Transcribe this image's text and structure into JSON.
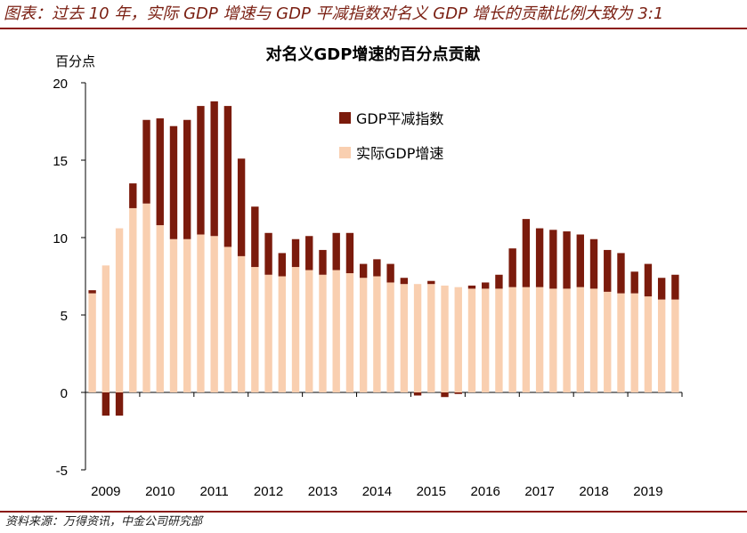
{
  "caption": "图表：过去 10 年，实际 GDP 增速与 GDP 平减指数对名义 GDP 增长的贡献比例大致为 3:1",
  "source": "资料来源：万得资讯，中金公司研究部",
  "colors": {
    "deflator": "#7b1b0c",
    "real": "#f9cfb0",
    "rule": "#8b1a10",
    "caption": "#7a1f12"
  },
  "chart_data": {
    "type": "bar",
    "stacked": true,
    "title": "对名义GDP增速的百分点贡献",
    "ylabel": "百分点",
    "xlabel": "",
    "ylim": [
      -5,
      20
    ],
    "yticks": [
      -5,
      0,
      5,
      10,
      15,
      20
    ],
    "xtick_labels": [
      "2009",
      "2010",
      "2011",
      "2012",
      "2013",
      "2014",
      "2015",
      "2016",
      "2017",
      "2018",
      "2019"
    ],
    "legend_position": "top-center",
    "categories": [
      "2009Q1",
      "2009Q2",
      "2009Q3",
      "2009Q4",
      "2010Q1",
      "2010Q2",
      "2010Q3",
      "2010Q4",
      "2011Q1",
      "2011Q2",
      "2011Q3",
      "2011Q4",
      "2012Q1",
      "2012Q2",
      "2012Q3",
      "2012Q4",
      "2013Q1",
      "2013Q2",
      "2013Q3",
      "2013Q4",
      "2014Q1",
      "2014Q2",
      "2014Q3",
      "2014Q4",
      "2015Q1",
      "2015Q2",
      "2015Q3",
      "2015Q4",
      "2016Q1",
      "2016Q2",
      "2016Q3",
      "2016Q4",
      "2017Q1",
      "2017Q2",
      "2017Q3",
      "2017Q4",
      "2018Q1",
      "2018Q2",
      "2018Q3",
      "2018Q4",
      "2019Q1",
      "2019Q2",
      "2019Q3",
      "2019Q4"
    ],
    "series": [
      {
        "name": "实际GDP增速",
        "values": [
          6.4,
          8.2,
          10.6,
          11.9,
          12.2,
          10.8,
          9.9,
          9.9,
          10.2,
          10.1,
          9.4,
          8.8,
          8.1,
          7.6,
          7.5,
          8.1,
          7.9,
          7.6,
          7.9,
          7.7,
          7.4,
          7.5,
          7.1,
          7.0,
          7.0,
          7.0,
          6.9,
          6.8,
          6.7,
          6.7,
          6.7,
          6.8,
          6.8,
          6.8,
          6.7,
          6.7,
          6.8,
          6.7,
          6.5,
          6.4,
          6.4,
          6.2,
          6.0,
          6.0
        ]
      },
      {
        "name": "GDP平减指数",
        "values": [
          0.2,
          -1.5,
          -1.5,
          1.6,
          5.4,
          6.9,
          7.3,
          7.7,
          8.3,
          8.7,
          9.1,
          6.3,
          3.9,
          2.7,
          1.5,
          1.8,
          2.2,
          1.6,
          2.4,
          2.6,
          0.9,
          1.1,
          1.2,
          0.4,
          -0.2,
          0.2,
          -0.3,
          -0.1,
          0.2,
          0.4,
          0.9,
          2.5,
          4.4,
          3.8,
          3.8,
          3.7,
          3.4,
          3.2,
          2.7,
          2.6,
          1.4,
          2.1,
          1.4,
          1.6
        ]
      }
    ]
  }
}
